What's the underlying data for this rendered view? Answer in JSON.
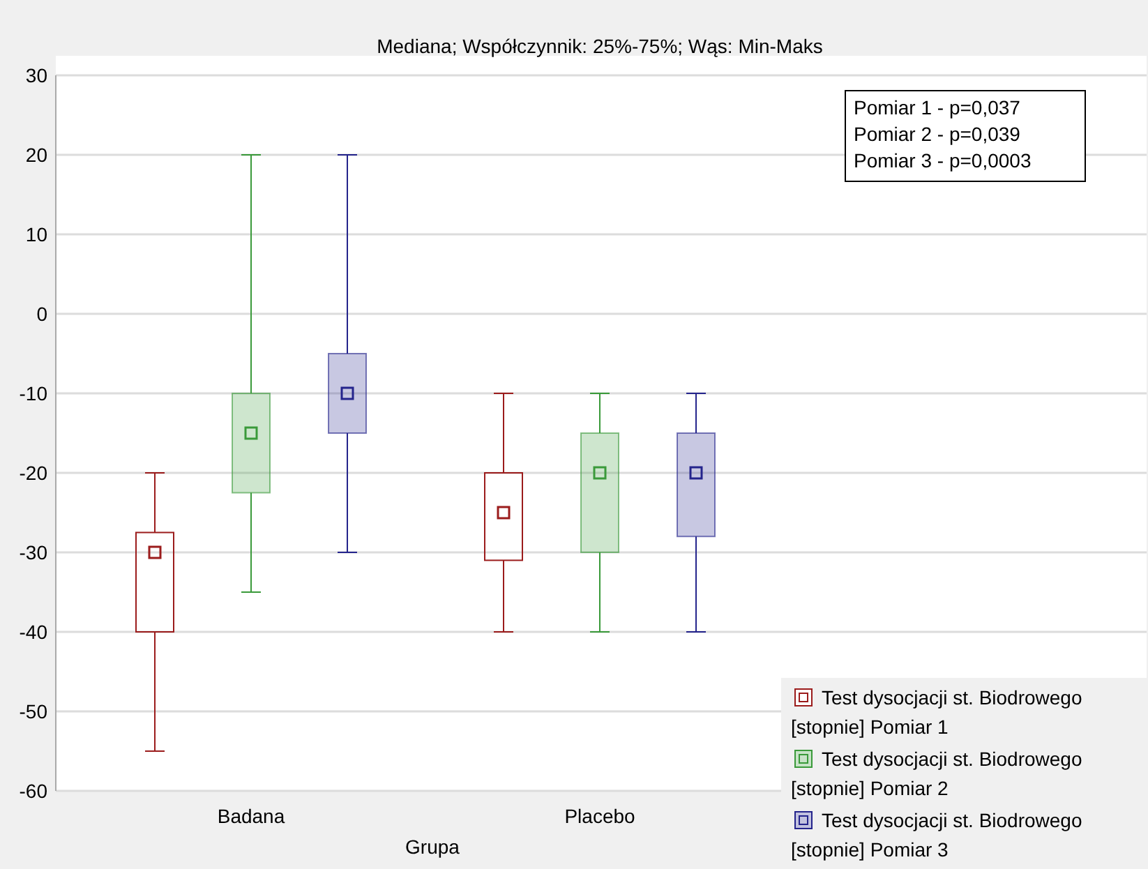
{
  "chart_data": {
    "type": "box",
    "title": "Mediana; Współczynnik: 25%-75%; Wąs: Min-Maks",
    "xlabel": "Grupa",
    "categories": [
      "Badana",
      "Placebo"
    ],
    "ylim": [
      -60,
      30
    ],
    "yticks": [
      -60,
      -50,
      -40,
      -30,
      -20,
      -10,
      0,
      10,
      20,
      30
    ],
    "grid": "y",
    "legend": "bottom right",
    "series": [
      {
        "name": "Test dysocjacji st. Biodrowego [stopnie] Pomiar 1",
        "color": "#9b1c1c",
        "boxes": [
          {
            "low": -55,
            "q1": -40,
            "median": -30,
            "q3": -27.5,
            "high": -20
          },
          {
            "low": -40,
            "q1": -31,
            "median": -25,
            "q3": -20,
            "high": -10
          }
        ]
      },
      {
        "name": "Test dysocjacji st. Biodrowego [stopnie] Pomiar 2",
        "color": "#3a9a3a",
        "boxes": [
          {
            "low": -35,
            "q1": -22.5,
            "median": -15,
            "q3": -10,
            "high": 20
          },
          {
            "low": -40,
            "q1": -30,
            "median": -20,
            "q3": -15,
            "high": -10
          }
        ]
      },
      {
        "name": "Test dysocjacji st. Biodrowego [stopnie] Pomiar 3",
        "color": "#24248c",
        "boxes": [
          {
            "low": -30,
            "q1": -15,
            "median": -10,
            "q3": -5,
            "high": 20
          },
          {
            "low": -40,
            "q1": -28,
            "median": -20,
            "q3": -15,
            "high": -10
          }
        ]
      }
    ],
    "annotations": [
      "Pomiar 1 - p=0,037",
      "Pomiar 2 - p=0,039",
      "Pomiar 3 - p=0,0003"
    ]
  }
}
